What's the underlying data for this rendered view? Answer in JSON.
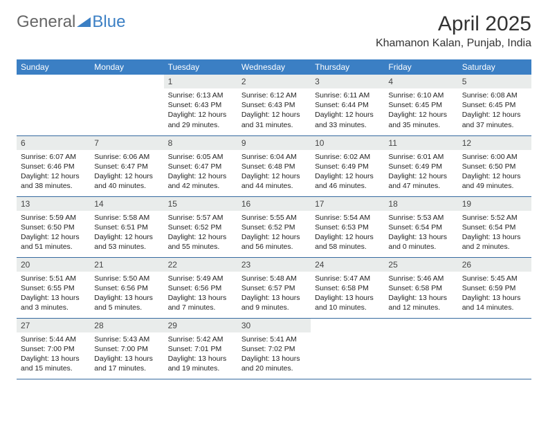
{
  "brand": {
    "part1": "General",
    "part2": "Blue"
  },
  "title": "April 2025",
  "location": "Khamanon Kalan, Punjab, India",
  "colors": {
    "header_bg": "#3b7fc4",
    "header_text": "#ffffff",
    "daynum_bg": "#e9eceb",
    "row_border": "#34699e",
    "text": "#222222",
    "brand_blue": "#3b7fc4",
    "brand_gray": "#666666"
  },
  "weekdays": [
    "Sunday",
    "Monday",
    "Tuesday",
    "Wednesday",
    "Thursday",
    "Friday",
    "Saturday"
  ],
  "calendar": {
    "first_weekday_index": 2,
    "num_days": 30
  },
  "days": {
    "1": {
      "sunrise": "6:13 AM",
      "sunset": "6:43 PM",
      "daylight": "12 hours and 29 minutes."
    },
    "2": {
      "sunrise": "6:12 AM",
      "sunset": "6:43 PM",
      "daylight": "12 hours and 31 minutes."
    },
    "3": {
      "sunrise": "6:11 AM",
      "sunset": "6:44 PM",
      "daylight": "12 hours and 33 minutes."
    },
    "4": {
      "sunrise": "6:10 AM",
      "sunset": "6:45 PM",
      "daylight": "12 hours and 35 minutes."
    },
    "5": {
      "sunrise": "6:08 AM",
      "sunset": "6:45 PM",
      "daylight": "12 hours and 37 minutes."
    },
    "6": {
      "sunrise": "6:07 AM",
      "sunset": "6:46 PM",
      "daylight": "12 hours and 38 minutes."
    },
    "7": {
      "sunrise": "6:06 AM",
      "sunset": "6:47 PM",
      "daylight": "12 hours and 40 minutes."
    },
    "8": {
      "sunrise": "6:05 AM",
      "sunset": "6:47 PM",
      "daylight": "12 hours and 42 minutes."
    },
    "9": {
      "sunrise": "6:04 AM",
      "sunset": "6:48 PM",
      "daylight": "12 hours and 44 minutes."
    },
    "10": {
      "sunrise": "6:02 AM",
      "sunset": "6:49 PM",
      "daylight": "12 hours and 46 minutes."
    },
    "11": {
      "sunrise": "6:01 AM",
      "sunset": "6:49 PM",
      "daylight": "12 hours and 47 minutes."
    },
    "12": {
      "sunrise": "6:00 AM",
      "sunset": "6:50 PM",
      "daylight": "12 hours and 49 minutes."
    },
    "13": {
      "sunrise": "5:59 AM",
      "sunset": "6:50 PM",
      "daylight": "12 hours and 51 minutes."
    },
    "14": {
      "sunrise": "5:58 AM",
      "sunset": "6:51 PM",
      "daylight": "12 hours and 53 minutes."
    },
    "15": {
      "sunrise": "5:57 AM",
      "sunset": "6:52 PM",
      "daylight": "12 hours and 55 minutes."
    },
    "16": {
      "sunrise": "5:55 AM",
      "sunset": "6:52 PM",
      "daylight": "12 hours and 56 minutes."
    },
    "17": {
      "sunrise": "5:54 AM",
      "sunset": "6:53 PM",
      "daylight": "12 hours and 58 minutes."
    },
    "18": {
      "sunrise": "5:53 AM",
      "sunset": "6:54 PM",
      "daylight": "13 hours and 0 minutes."
    },
    "19": {
      "sunrise": "5:52 AM",
      "sunset": "6:54 PM",
      "daylight": "13 hours and 2 minutes."
    },
    "20": {
      "sunrise": "5:51 AM",
      "sunset": "6:55 PM",
      "daylight": "13 hours and 3 minutes."
    },
    "21": {
      "sunrise": "5:50 AM",
      "sunset": "6:56 PM",
      "daylight": "13 hours and 5 minutes."
    },
    "22": {
      "sunrise": "5:49 AM",
      "sunset": "6:56 PM",
      "daylight": "13 hours and 7 minutes."
    },
    "23": {
      "sunrise": "5:48 AM",
      "sunset": "6:57 PM",
      "daylight": "13 hours and 9 minutes."
    },
    "24": {
      "sunrise": "5:47 AM",
      "sunset": "6:58 PM",
      "daylight": "13 hours and 10 minutes."
    },
    "25": {
      "sunrise": "5:46 AM",
      "sunset": "6:58 PM",
      "daylight": "13 hours and 12 minutes."
    },
    "26": {
      "sunrise": "5:45 AM",
      "sunset": "6:59 PM",
      "daylight": "13 hours and 14 minutes."
    },
    "27": {
      "sunrise": "5:44 AM",
      "sunset": "7:00 PM",
      "daylight": "13 hours and 15 minutes."
    },
    "28": {
      "sunrise": "5:43 AM",
      "sunset": "7:00 PM",
      "daylight": "13 hours and 17 minutes."
    },
    "29": {
      "sunrise": "5:42 AM",
      "sunset": "7:01 PM",
      "daylight": "13 hours and 19 minutes."
    },
    "30": {
      "sunrise": "5:41 AM",
      "sunset": "7:02 PM",
      "daylight": "13 hours and 20 minutes."
    }
  },
  "labels": {
    "sunrise": "Sunrise:",
    "sunset": "Sunset:",
    "daylight": "Daylight:"
  }
}
